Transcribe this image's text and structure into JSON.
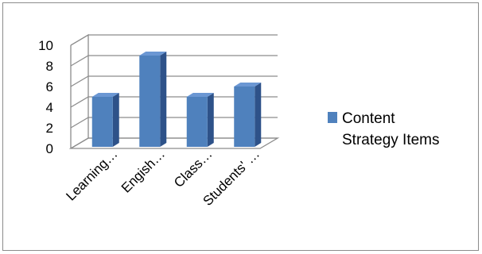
{
  "chart_data": {
    "type": "bar",
    "style": "3d-column",
    "title": "",
    "xlabel": "",
    "ylabel": "",
    "categories": [
      "Learning…",
      "Engish…",
      "Class…",
      "Students' …"
    ],
    "series": [
      {
        "name": "Content Strategy Items",
        "values": [
          5,
          9,
          5,
          6
        ],
        "color": "#4f81bd"
      }
    ],
    "ylim": [
      0,
      10
    ],
    "yticks": [
      "0",
      "2",
      "4",
      "6",
      "8",
      "10"
    ],
    "grid": true,
    "legend": {
      "placement": "right",
      "lines": [
        "Content",
        "Strategy Items"
      ]
    }
  }
}
